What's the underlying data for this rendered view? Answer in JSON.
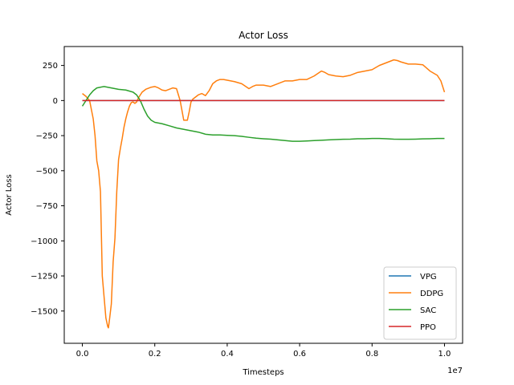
{
  "chart_data": {
    "type": "line",
    "title": "Actor Loss",
    "xlabel": "Timesteps",
    "ylabel": "Actor Loss",
    "x_offset_label": "1e7",
    "xlim": [
      -0.05,
      1.05
    ],
    "ylim": [
      -1730,
      385
    ],
    "xticks": [
      0.0,
      0.2,
      0.4,
      0.6,
      0.8,
      1.0
    ],
    "xtick_labels": [
      "0.0",
      "0.2",
      "0.4",
      "0.6",
      "0.8",
      "1.0"
    ],
    "yticks": [
      250,
      0,
      -250,
      -500,
      -750,
      -1000,
      -1250,
      -1500
    ],
    "ytick_labels": [
      "250",
      "0",
      "−250",
      "−500",
      "−750",
      "−1000",
      "−1250",
      "−1500"
    ],
    "grid": false,
    "legend_position": "lower-right",
    "series": [
      {
        "name": "VPG",
        "color": "#1f77b4",
        "x": [
          0.0,
          1.0
        ],
        "y": [
          0,
          0
        ]
      },
      {
        "name": "DDPG",
        "color": "#ff7f0e",
        "x": [
          0.0,
          0.01,
          0.02,
          0.03,
          0.035,
          0.04,
          0.045,
          0.05,
          0.055,
          0.06,
          0.065,
          0.07,
          0.072,
          0.075,
          0.08,
          0.085,
          0.09,
          0.095,
          0.1,
          0.105,
          0.11,
          0.115,
          0.12,
          0.125,
          0.13,
          0.135,
          0.14,
          0.145,
          0.15,
          0.155,
          0.16,
          0.165,
          0.17,
          0.175,
          0.18,
          0.19,
          0.2,
          0.21,
          0.22,
          0.23,
          0.24,
          0.25,
          0.26,
          0.27,
          0.28,
          0.29,
          0.295,
          0.3,
          0.305,
          0.31,
          0.32,
          0.33,
          0.34,
          0.35,
          0.36,
          0.37,
          0.38,
          0.39,
          0.4,
          0.42,
          0.44,
          0.46,
          0.47,
          0.48,
          0.5,
          0.52,
          0.54,
          0.56,
          0.58,
          0.6,
          0.62,
          0.64,
          0.66,
          0.67,
          0.68,
          0.7,
          0.72,
          0.74,
          0.76,
          0.78,
          0.8,
          0.82,
          0.84,
          0.86,
          0.87,
          0.88,
          0.9,
          0.92,
          0.94,
          0.96,
          0.98,
          0.99,
          1.0
        ],
        "y": [
          50,
          30,
          0,
          -130,
          -250,
          -430,
          -500,
          -650,
          -1250,
          -1400,
          -1550,
          -1610,
          -1620,
          -1560,
          -1450,
          -1150,
          -980,
          -650,
          -420,
          -340,
          -270,
          -190,
          -130,
          -80,
          -40,
          -15,
          -10,
          -20,
          -10,
          20,
          40,
          60,
          70,
          80,
          85,
          95,
          100,
          90,
          75,
          70,
          80,
          90,
          85,
          0,
          -140,
          -140,
          -80,
          -10,
          10,
          20,
          40,
          50,
          35,
          70,
          120,
          140,
          150,
          150,
          145,
          135,
          120,
          85,
          100,
          110,
          110,
          100,
          120,
          140,
          140,
          150,
          150,
          175,
          210,
          200,
          185,
          175,
          170,
          180,
          200,
          210,
          220,
          250,
          270,
          290,
          285,
          275,
          260,
          260,
          255,
          210,
          180,
          140,
          60
        ]
      },
      {
        "name": "SAC",
        "color": "#2ca02c",
        "x": [
          0.0,
          0.01,
          0.02,
          0.03,
          0.04,
          0.05,
          0.06,
          0.07,
          0.08,
          0.1,
          0.12,
          0.14,
          0.15,
          0.16,
          0.17,
          0.18,
          0.19,
          0.2,
          0.22,
          0.24,
          0.26,
          0.28,
          0.3,
          0.32,
          0.34,
          0.36,
          0.38,
          0.4,
          0.42,
          0.44,
          0.46,
          0.48,
          0.5,
          0.52,
          0.54,
          0.56,
          0.58,
          0.6,
          0.62,
          0.64,
          0.66,
          0.68,
          0.7,
          0.72,
          0.74,
          0.76,
          0.78,
          0.8,
          0.82,
          0.84,
          0.86,
          0.88,
          0.9,
          0.92,
          0.94,
          0.96,
          0.98,
          1.0
        ],
        "y": [
          -40,
          0,
          40,
          70,
          90,
          95,
          100,
          95,
          90,
          80,
          75,
          60,
          40,
          0,
          -60,
          -110,
          -140,
          -155,
          -165,
          -180,
          -195,
          -205,
          -215,
          -225,
          -240,
          -245,
          -245,
          -248,
          -250,
          -255,
          -262,
          -268,
          -272,
          -275,
          -280,
          -285,
          -290,
          -290,
          -288,
          -285,
          -283,
          -280,
          -278,
          -276,
          -275,
          -272,
          -272,
          -270,
          -270,
          -272,
          -275,
          -276,
          -276,
          -275,
          -273,
          -272,
          -270,
          -270
        ]
      },
      {
        "name": "PPO",
        "color": "#d62728",
        "x": [
          0.0,
          1.0
        ],
        "y": [
          0,
          0
        ]
      }
    ]
  }
}
